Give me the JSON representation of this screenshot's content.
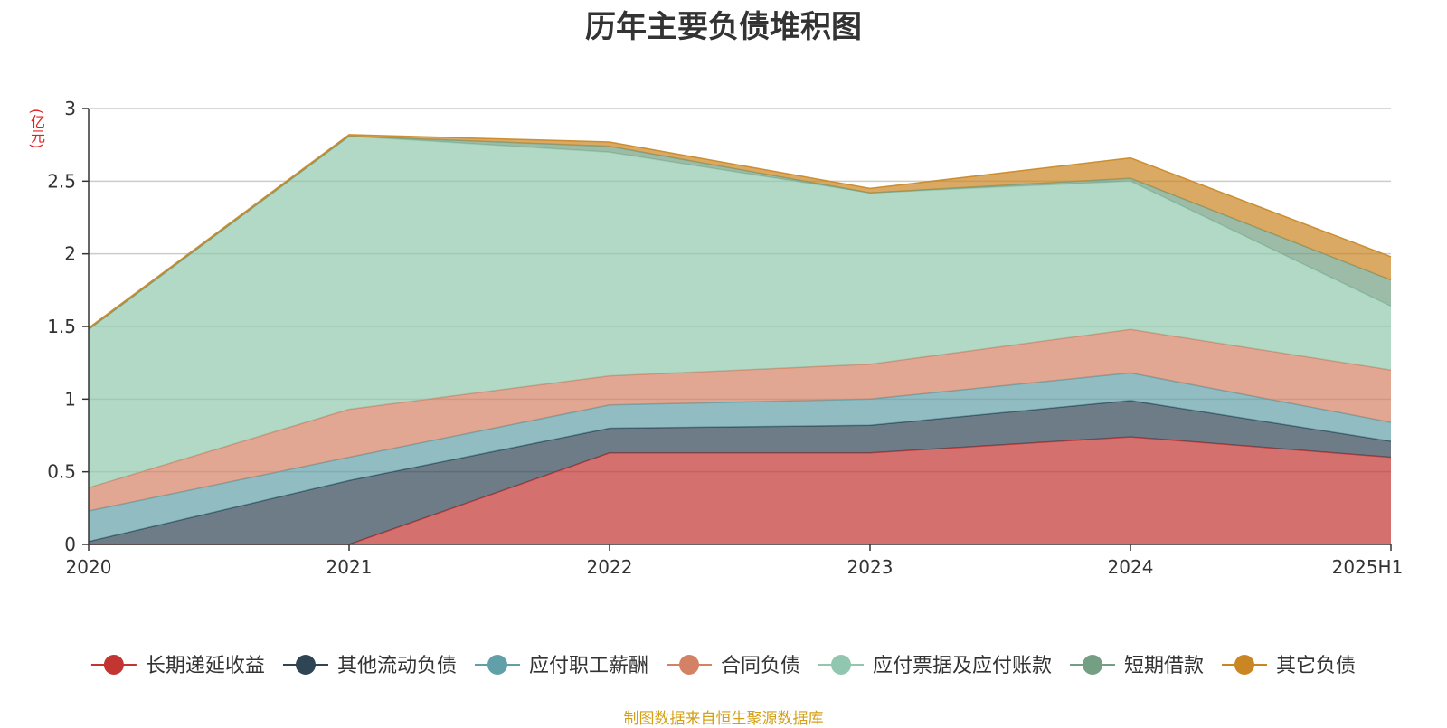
{
  "chart_data": {
    "type": "area",
    "stacked": true,
    "title": "历年主要负债堆积图",
    "unit": "(亿元)",
    "categories": [
      "2020",
      "2021",
      "2022",
      "2023",
      "2024",
      "2025H1"
    ],
    "ylim": [
      0,
      3
    ],
    "yticks": [
      "0",
      "0.5",
      "1",
      "1.5",
      "2",
      "2.5",
      "3"
    ],
    "grid": true,
    "legend_position": "bottom",
    "series": [
      {
        "name": "长期递延收益",
        "color": "#c23531",
        "values": [
          0,
          0,
          0.63,
          0.63,
          0.74,
          0.6
        ]
      },
      {
        "name": "其他流动负债",
        "color": "#2f4554",
        "values": [
          0.02,
          0.44,
          0.17,
          0.19,
          0.25,
          0.11
        ]
      },
      {
        "name": "应付职工薪酬",
        "color": "#61a0a8",
        "values": [
          0.21,
          0.16,
          0.16,
          0.18,
          0.19,
          0.13
        ]
      },
      {
        "name": "合同负债",
        "color": "#d48265",
        "values": [
          0.16,
          0.33,
          0.2,
          0.24,
          0.3,
          0.36
        ]
      },
      {
        "name": "应付票据及应付账款",
        "color": "#91c7ae",
        "values": [
          1.09,
          1.88,
          1.54,
          1.18,
          1.02,
          0.44
        ]
      },
      {
        "name": "短期借款",
        "color": "#749f83",
        "values": [
          0,
          0,
          0.04,
          0,
          0.02,
          0.18
        ]
      },
      {
        "name": "其它负债",
        "color": "#ca8622",
        "values": [
          0.01,
          0.01,
          0.03,
          0.03,
          0.14,
          0.16
        ]
      }
    ]
  },
  "source_note": "制图数据来自恒生聚源数据库"
}
